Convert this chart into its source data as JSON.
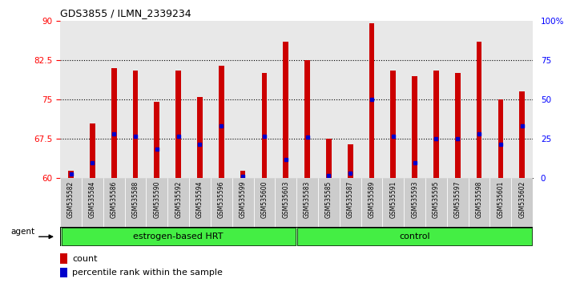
{
  "title": "GDS3855 / ILMN_2339234",
  "samples": [
    "GSM535582",
    "GSM535584",
    "GSM535586",
    "GSM535588",
    "GSM535590",
    "GSM535592",
    "GSM535594",
    "GSM535596",
    "GSM535599",
    "GSM535600",
    "GSM535603",
    "GSM535583",
    "GSM535585",
    "GSM535587",
    "GSM535589",
    "GSM535591",
    "GSM535593",
    "GSM535595",
    "GSM535597",
    "GSM535598",
    "GSM535601",
    "GSM535602"
  ],
  "bar_heights": [
    61.5,
    70.5,
    81.0,
    80.5,
    74.5,
    80.5,
    75.5,
    81.5,
    61.5,
    80.0,
    86.0,
    82.5,
    67.5,
    66.5,
    89.5,
    80.5,
    79.5,
    80.5,
    80.0,
    86.0,
    75.0,
    76.5
  ],
  "percentile_ranks": [
    60.8,
    63.0,
    68.5,
    68.0,
    65.5,
    68.0,
    66.5,
    70.0,
    60.3,
    68.0,
    63.5,
    67.8,
    60.5,
    61.0,
    75.0,
    68.0,
    63.0,
    67.5,
    67.5,
    68.5,
    66.5,
    70.0
  ],
  "bar_color": "#cc0000",
  "dot_color": "#0000cc",
  "ylim_left": [
    60,
    90
  ],
  "ylim_right": [
    0,
    100
  ],
  "yticks_left": [
    60,
    67.5,
    75,
    82.5,
    90
  ],
  "yticks_right": [
    0,
    25,
    50,
    75,
    100
  ],
  "ytick_labels_left": [
    "60",
    "67.5",
    "75",
    "82.5",
    "90"
  ],
  "ytick_labels_right": [
    "0",
    "25",
    "50",
    "75",
    "100%"
  ],
  "hlines": [
    67.5,
    75.0,
    82.5
  ],
  "group1_label": "estrogen-based HRT",
  "group2_label": "control",
  "group1_count": 11,
  "group2_count": 11,
  "legend_count_label": "count",
  "legend_pct_label": "percentile rank within the sample",
  "agent_label": "agent",
  "plot_bg_color": "#e8e8e8",
  "group_bg_color": "#99ff99",
  "group_inner_color": "#44ee44",
  "bar_width": 0.25
}
